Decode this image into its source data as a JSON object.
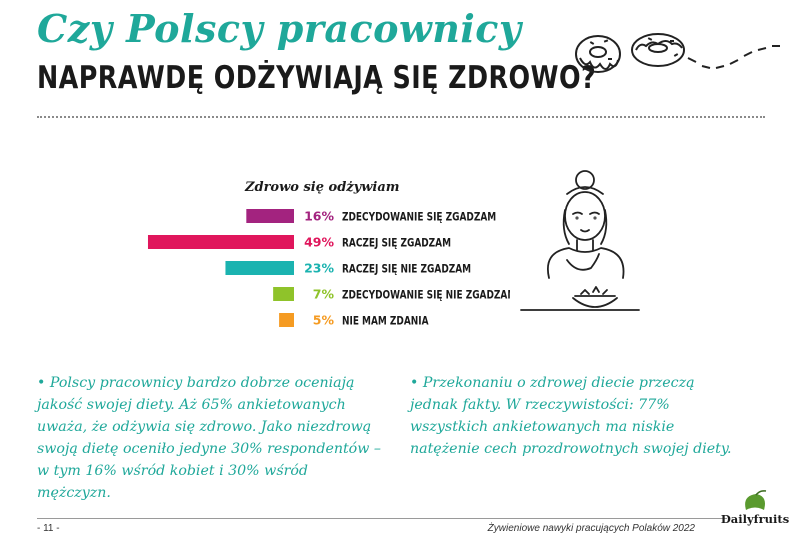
{
  "header": {
    "title_line1": "Czy Polscy pracownicy",
    "title_line2": "NAPRAWDĘ ODŻYWIAJĄ SIĘ ZDROWO?"
  },
  "chart_data": {
    "type": "bar",
    "orientation": "horizontal",
    "title": "Zdrowo się odżywiam",
    "categories": [
      "ZDECYDOWANIE SIĘ ZGADZAM",
      "RACZEJ SIĘ ZGADZAM",
      "RACZEJ SIĘ NIE ZGADZAM",
      "ZDECYDOWANIE SIĘ NIE ZGADZAM",
      "NIE MAM ZDANIA"
    ],
    "values": [
      16,
      49,
      23,
      7,
      5
    ],
    "value_labels": [
      "16%",
      "49%",
      "23%",
      "7%",
      "5%"
    ],
    "colors": [
      "#a3237f",
      "#e0165c",
      "#1bb3b0",
      "#8fc32a",
      "#f59b22"
    ],
    "xlim": [
      0,
      50
    ],
    "grid": false,
    "legend": "none"
  },
  "text_left": "• Polscy pracownicy bardzo dobrze oceniają jakość swojej diety. Aż 65% ankietowanych uważa, że odżywia się zdrowo. Jako niezdrową swoją dietę oceniło jedyne 30% respondentów – w tym 16% wśród kobiet i 30% wśród mężczyzn.",
  "text_right": "• Przekonaniu o zdrowej diecie przeczą jednak fakty. W rzeczywistości: 77% wszystkich ankietowanych ma niskie natężenie cech prozdrowotnych swojej diety.",
  "footer": {
    "page": "- 11 -",
    "note": "Żywieniowe nawyki pracujących Polaków 2022",
    "logo_text": "Dailyfruits"
  },
  "colors": {
    "accent_teal": "#1fa89a",
    "logo_green": "#5a9a2e"
  },
  "icons": {
    "decoration": "donuts-illustration",
    "illustration": "woman-eating-salad-illustration",
    "logo_leaf": "apple-leaf-icon"
  }
}
